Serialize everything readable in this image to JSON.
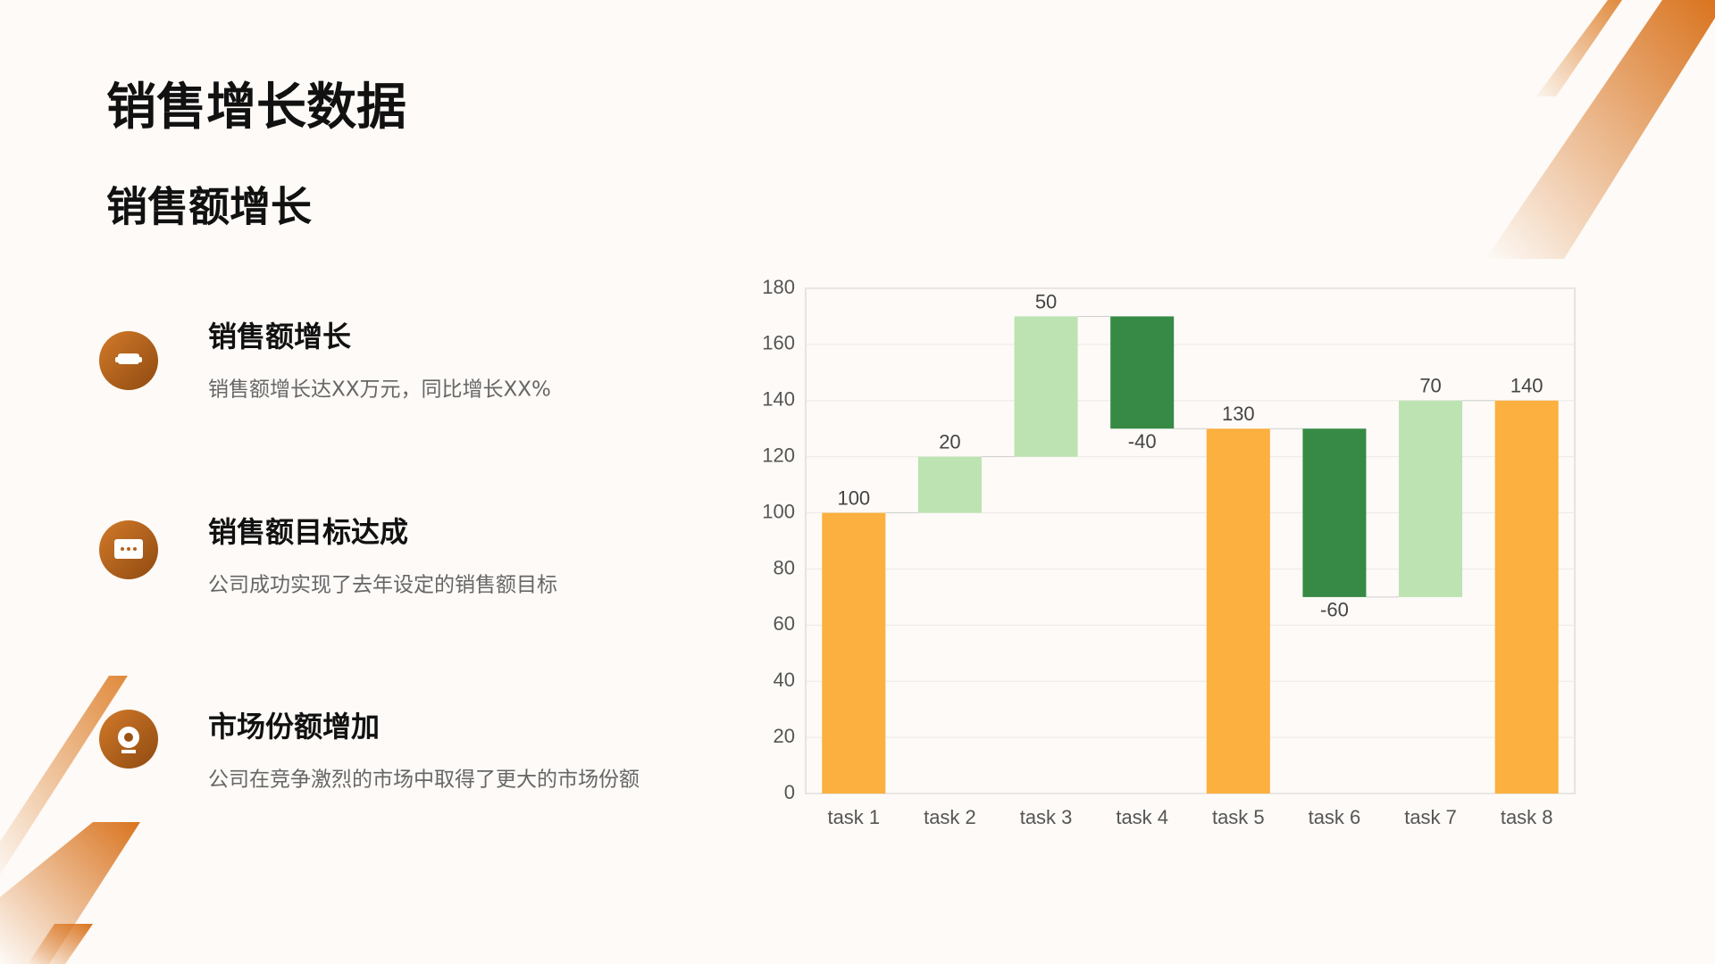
{
  "header": {
    "title": "销售增长数据",
    "subtitle": "销售额增长"
  },
  "items": [
    {
      "heading": "销售额增长",
      "text": "销售额增长达XX万元，同比增长XX%"
    },
    {
      "heading": "销售额目标达成",
      "text": "公司成功实现了去年设定的销售额目标"
    },
    {
      "heading": "市场份额增加",
      "text": "公司在竞争激烈的市场中取得了更大的市场份额"
    }
  ],
  "chart_data": {
    "type": "waterfall",
    "categories": [
      "task 1",
      "task 2",
      "task 3",
      "task 4",
      "task 5",
      "task 6",
      "task 7",
      "task 8"
    ],
    "values": [
      100,
      20,
      50,
      -40,
      130,
      -60,
      70,
      140
    ],
    "totals": [
      true,
      false,
      false,
      false,
      true,
      false,
      false,
      true
    ],
    "total_color": "#fbb03f",
    "increase_color": "#bce3b1",
    "decrease_color": "#368a45",
    "ylim": [
      0,
      180
    ],
    "yticks": [
      0,
      20,
      40,
      60,
      80,
      100,
      120,
      140,
      160,
      180
    ],
    "grid": true
  }
}
